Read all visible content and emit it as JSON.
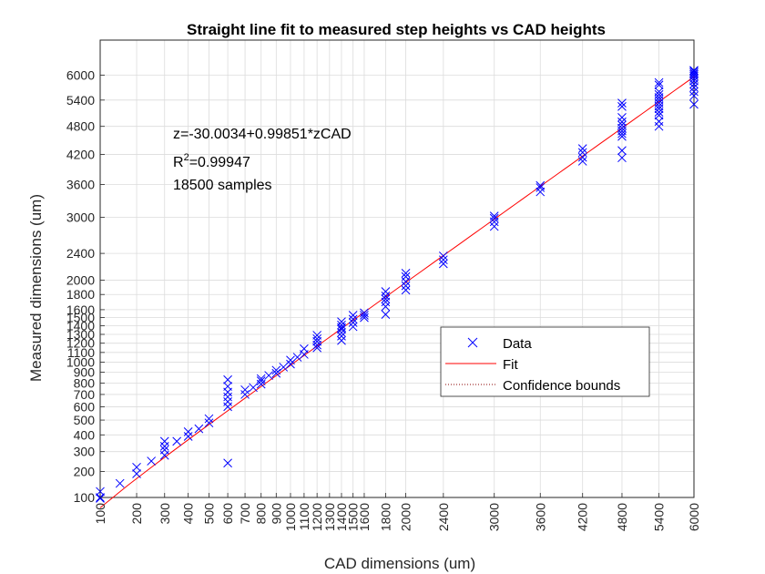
{
  "chart_data": {
    "type": "scatter",
    "title": "Straight line fit to measured step heights vs CAD heights",
    "xlabel": "CAD dimensions (um)",
    "ylabel": "Measured dimensions (um)",
    "xlim": [
      100,
      6000
    ],
    "ylim": [
      100,
      6900
    ],
    "x_ticks": [
      100,
      200,
      300,
      400,
      500,
      600,
      700,
      800,
      900,
      1000,
      1100,
      1200,
      1300,
      1400,
      1500,
      1600,
      1800,
      2000,
      2400,
      3000,
      3600,
      4200,
      4800,
      5400,
      6000
    ],
    "y_ticks": [
      100,
      200,
      300,
      400,
      500,
      600,
      700,
      800,
      900,
      1000,
      1100,
      1200,
      1300,
      1400,
      1500,
      1600,
      1800,
      2000,
      2400,
      3000,
      3600,
      4200,
      4800,
      5400,
      6000
    ],
    "x_tick_labels": [
      "100",
      "200",
      "300",
      "400",
      "500",
      "600",
      "700",
      "800",
      "900",
      "1000",
      "1100",
      "1200",
      "1300",
      "1400",
      "1500",
      "1600",
      "1800",
      "2000",
      "2400",
      "3000",
      "3600",
      "4200",
      "4800",
      "5400",
      "6000"
    ],
    "y_tick_labels": [
      "100",
      "200",
      "300",
      "400",
      "500",
      "600",
      "700",
      "800",
      "900",
      "1000",
      "1100",
      "1200",
      "1300",
      "1400",
      "1500",
      "1600",
      "1800",
      "2000",
      "2400",
      "3000",
      "3600",
      "4200",
      "4800",
      "5400",
      "6000"
    ],
    "grid": true,
    "colors": {
      "data": "#0000ff",
      "fit": "#ff0000",
      "bounds": "#8b0000"
    },
    "annotations": [
      "z=-30.0034+0.99851*zCAD",
      "R",
      "2",
      "=0.99947",
      "18500 samples"
    ],
    "fit": {
      "intercept": -30.0034,
      "slope": 0.99851
    },
    "legend": {
      "position": "lower-right",
      "entries": [
        {
          "label": "Data",
          "style": "marker-x"
        },
        {
          "label": "Fit",
          "style": "solid-line"
        },
        {
          "label": "Confidence bounds",
          "style": "dotted-line"
        }
      ]
    },
    "series": [
      {
        "name": "Data",
        "x": [
          100,
          100,
          100,
          150,
          200,
          200,
          250,
          300,
          300,
          300,
          300,
          350,
          400,
          400,
          450,
          500,
          500,
          600,
          600,
          600,
          600,
          600,
          600,
          600,
          700,
          700,
          750,
          800,
          800,
          800,
          850,
          900,
          900,
          950,
          1000,
          1000,
          1050,
          1100,
          1100,
          1200,
          1200,
          1200,
          1200,
          1200,
          1400,
          1400,
          1400,
          1400,
          1400,
          1400,
          1400,
          1500,
          1500,
          1500,
          1500,
          1600,
          1600,
          1600,
          1800,
          1800,
          1800,
          1800,
          1800,
          1800,
          2000,
          2000,
          2000,
          2000,
          2000,
          2400,
          2400,
          2400,
          3000,
          3000,
          3000,
          3000,
          3600,
          3600,
          3600,
          4200,
          4200,
          4200,
          4200,
          4800,
          4800,
          4800,
          4800,
          4800,
          4800,
          4800,
          4800,
          4800,
          4800,
          4800,
          5400,
          5400,
          5400,
          5400,
          5400,
          5400,
          5400,
          5400,
          5400,
          5400,
          5400,
          5400,
          5400,
          6000,
          6000,
          6000,
          6000,
          6000,
          6000,
          6000,
          6000,
          6000,
          6000,
          6000,
          6000
        ],
        "y": [
          100,
          80,
          120,
          150,
          190,
          220,
          250,
          280,
          310,
          330,
          360,
          360,
          390,
          420,
          440,
          480,
          510,
          240,
          600,
          640,
          680,
          720,
          770,
          830,
          700,
          740,
          760,
          790,
          820,
          840,
          870,
          890,
          920,
          950,
          980,
          1020,
          1050,
          1080,
          1140,
          1150,
          1180,
          1220,
          1250,
          1290,
          1230,
          1280,
          1320,
          1360,
          1380,
          1410,
          1450,
          1390,
          1440,
          1480,
          1530,
          1500,
          1530,
          1560,
          1540,
          1640,
          1700,
          1740,
          1780,
          1840,
          1860,
          1920,
          1980,
          2050,
          2100,
          2240,
          2300,
          2360,
          2840,
          2920,
          2980,
          3020,
          3460,
          3540,
          3580,
          4060,
          4140,
          4240,
          4320,
          4130,
          4280,
          4580,
          4640,
          4700,
          4760,
          4830,
          4900,
          5000,
          5250,
          5330,
          4800,
          4910,
          5050,
          5120,
          5200,
          5260,
          5330,
          5400,
          5460,
          5530,
          5600,
          5760,
          5820,
          5300,
          5500,
          5600,
          5700,
          5780,
          5860,
          5920,
          5980,
          6020,
          6060,
          6100,
          6120
        ]
      }
    ]
  }
}
